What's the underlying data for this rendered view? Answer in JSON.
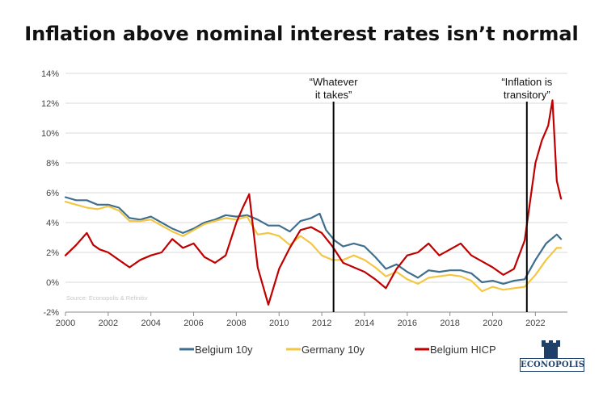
{
  "title": "Inflation above nominal interest rates isn’t normal",
  "source_note": "Source: Econopolis & Refinitiv",
  "logo_text": "ECONOPOLIS",
  "colors": {
    "belgium_10y": "#3f6f8f",
    "germany_10y": "#f3c744",
    "belgium_hicp": "#c00000",
    "grid": "#d9d9d9",
    "text": "#444444"
  },
  "chart_data": {
    "type": "line",
    "xlim": [
      2000,
      2023.5
    ],
    "ylim": [
      -2,
      14
    ],
    "x_ticks": [
      2000,
      2002,
      2004,
      2006,
      2008,
      2010,
      2012,
      2014,
      2016,
      2018,
      2020,
      2022
    ],
    "x_tick_labels": [
      "2000",
      "2002",
      "2004",
      "2006",
      "2008",
      "2010",
      "2012",
      "2014",
      "2016",
      "2018",
      "2020",
      "2022"
    ],
    "y_ticks": [
      -2,
      0,
      2,
      4,
      6,
      8,
      10,
      12,
      14
    ],
    "y_tick_labels": [
      "-2%",
      "0%",
      "2%",
      "4%",
      "6%",
      "8%",
      "10%",
      "12%",
      "14%"
    ],
    "grid": "horizontal",
    "legend_position": "bottom",
    "annotations": [
      {
        "x": 2012.55,
        "lines": [
          "“Whatever",
          "it takes”"
        ]
      },
      {
        "x": 2021.6,
        "lines": [
          "“Inflation is",
          "transitory”"
        ]
      }
    ],
    "series": [
      {
        "name": "Belgium 10y",
        "color": "#3f6f8f",
        "x": [
          2000,
          2000.5,
          2001,
          2001.5,
          2002,
          2002.5,
          2003,
          2003.5,
          2004,
          2004.5,
          2005,
          2005.5,
          2006,
          2006.5,
          2007,
          2007.5,
          2008,
          2008.5,
          2009,
          2009.5,
          2010,
          2010.5,
          2011,
          2011.5,
          2011.9,
          2012.2,
          2012.6,
          2013,
          2013.5,
          2014,
          2014.5,
          2015,
          2015.5,
          2016,
          2016.5,
          2017,
          2017.5,
          2018,
          2018.5,
          2019,
          2019.5,
          2020,
          2020.5,
          2021,
          2021.5,
          2022,
          2022.5,
          2023,
          2023.2
        ],
        "y": [
          5.7,
          5.5,
          5.5,
          5.2,
          5.2,
          5.0,
          4.3,
          4.2,
          4.4,
          4.0,
          3.6,
          3.3,
          3.6,
          4.0,
          4.2,
          4.5,
          4.4,
          4.5,
          4.2,
          3.8,
          3.8,
          3.4,
          4.1,
          4.3,
          4.6,
          3.5,
          2.8,
          2.4,
          2.6,
          2.4,
          1.7,
          0.9,
          1.2,
          0.7,
          0.3,
          0.8,
          0.7,
          0.8,
          0.8,
          0.6,
          0.0,
          0.1,
          -0.1,
          0.1,
          0.2,
          1.5,
          2.6,
          3.2,
          2.9
        ]
      },
      {
        "name": "Germany 10y",
        "color": "#f3c744",
        "x": [
          2000,
          2000.5,
          2001,
          2001.5,
          2002,
          2002.5,
          2003,
          2003.5,
          2004,
          2004.5,
          2005,
          2005.5,
          2006,
          2006.5,
          2007,
          2007.5,
          2008,
          2008.5,
          2009,
          2009.5,
          2010,
          2010.5,
          2011,
          2011.5,
          2012,
          2012.5,
          2013,
          2013.5,
          2014,
          2014.5,
          2015,
          2015.5,
          2016,
          2016.5,
          2017,
          2017.5,
          2018,
          2018.5,
          2019,
          2019.5,
          2020,
          2020.5,
          2021,
          2021.5,
          2022,
          2022.5,
          2023,
          2023.2
        ],
        "y": [
          5.4,
          5.2,
          5.0,
          4.9,
          5.1,
          4.8,
          4.1,
          4.1,
          4.2,
          3.8,
          3.4,
          3.1,
          3.5,
          3.9,
          4.1,
          4.3,
          4.2,
          4.4,
          3.2,
          3.3,
          3.1,
          2.5,
          3.1,
          2.6,
          1.8,
          1.5,
          1.5,
          1.8,
          1.5,
          1.0,
          0.4,
          0.7,
          0.2,
          -0.1,
          0.3,
          0.4,
          0.5,
          0.4,
          0.1,
          -0.6,
          -0.3,
          -0.5,
          -0.4,
          -0.3,
          0.5,
          1.5,
          2.3,
          2.3
        ]
      },
      {
        "name": "Belgium HICP",
        "color": "#c00000",
        "x": [
          2000,
          2000.5,
          2001,
          2001.3,
          2001.6,
          2002,
          2002.5,
          2003,
          2003.5,
          2004,
          2004.5,
          2005,
          2005.5,
          2006,
          2006.5,
          2007,
          2007.5,
          2008,
          2008.3,
          2008.6,
          2009,
          2009.5,
          2010,
          2010.5,
          2011,
          2011.5,
          2012,
          2012.5,
          2013,
          2013.5,
          2014,
          2014.5,
          2015,
          2015.5,
          2016,
          2016.5,
          2017,
          2017.5,
          2018,
          2018.5,
          2019,
          2019.5,
          2020,
          2020.5,
          2021,
          2021.5,
          2022,
          2022.3,
          2022.6,
          2022.8,
          2023,
          2023.2
        ],
        "y": [
          1.8,
          2.5,
          3.3,
          2.5,
          2.2,
          2.0,
          1.5,
          1.0,
          1.5,
          1.8,
          2.0,
          2.9,
          2.3,
          2.6,
          1.7,
          1.3,
          1.8,
          4.0,
          5.0,
          5.9,
          1.0,
          -1.5,
          0.9,
          2.3,
          3.5,
          3.7,
          3.3,
          2.4,
          1.3,
          1.0,
          0.7,
          0.2,
          -0.4,
          0.9,
          1.8,
          2.0,
          2.6,
          1.8,
          2.2,
          2.6,
          1.8,
          1.4,
          1.0,
          0.5,
          0.9,
          2.8,
          8.0,
          9.5,
          10.5,
          12.2,
          6.8,
          5.6
        ]
      }
    ]
  }
}
